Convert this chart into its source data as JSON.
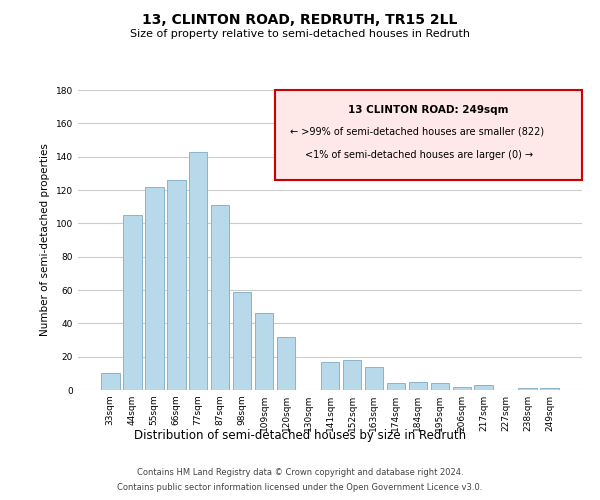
{
  "title": "13, CLINTON ROAD, REDRUTH, TR15 2LL",
  "subtitle": "Size of property relative to semi-detached houses in Redruth",
  "xlabel": "Distribution of semi-detached houses by size in Redruth",
  "ylabel": "Number of semi-detached properties",
  "categories": [
    "33sqm",
    "44sqm",
    "55sqm",
    "66sqm",
    "77sqm",
    "87sqm",
    "98sqm",
    "109sqm",
    "120sqm",
    "130sqm",
    "141sqm",
    "152sqm",
    "163sqm",
    "174sqm",
    "184sqm",
    "195sqm",
    "206sqm",
    "217sqm",
    "227sqm",
    "238sqm",
    "249sqm"
  ],
  "values": [
    10,
    105,
    122,
    126,
    143,
    111,
    59,
    46,
    32,
    0,
    17,
    18,
    14,
    4,
    5,
    4,
    2,
    3,
    0,
    1,
    1
  ],
  "bar_color": "#b8d9ea",
  "bar_edge_color": "#8ab4cb",
  "ylim": [
    0,
    180
  ],
  "yticks": [
    0,
    20,
    40,
    60,
    80,
    100,
    120,
    140,
    160,
    180
  ],
  "box_title": "13 CLINTON ROAD: 249sqm",
  "box_line1": "← >99% of semi-detached houses are smaller (822)",
  "box_line2": "<1% of semi-detached houses are larger (0) →",
  "box_facecolor": "#ffe8e8",
  "box_edgecolor": "#cc0000",
  "footer_line1": "Contains HM Land Registry data © Crown copyright and database right 2024.",
  "footer_line2": "Contains public sector information licensed under the Open Government Licence v3.0.",
  "background_color": "#ffffff",
  "grid_color": "#cccccc"
}
